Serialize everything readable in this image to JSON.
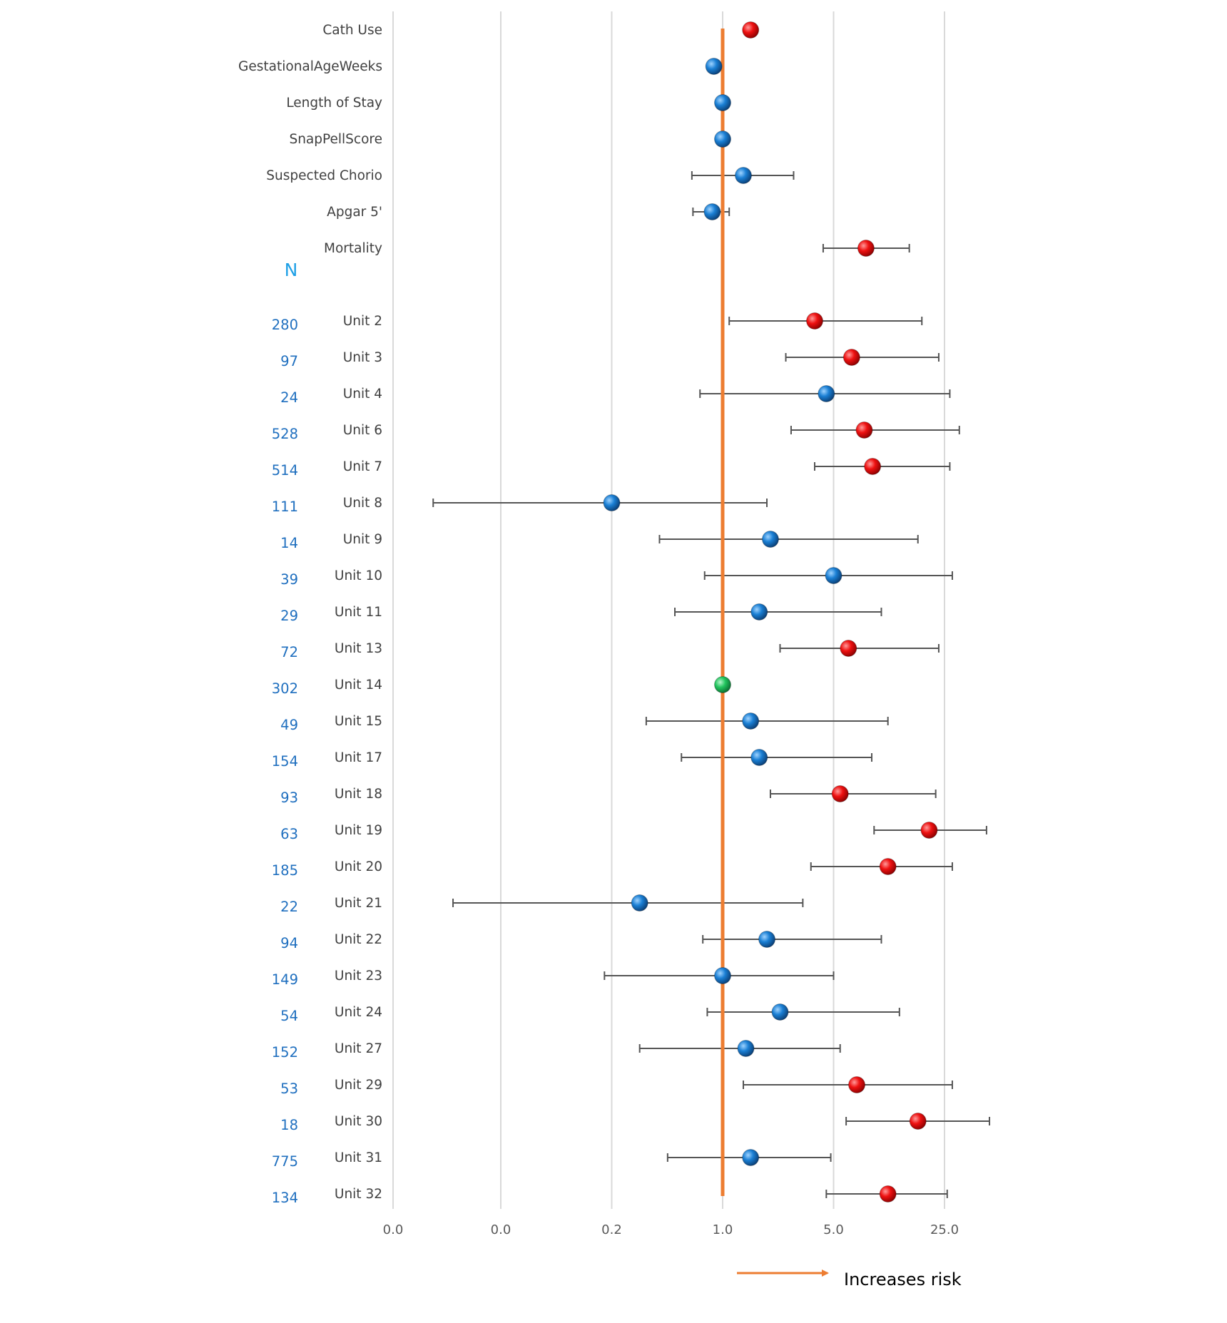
{
  "chart_data": {
    "type": "forest",
    "title": "",
    "xlabel": "",
    "ylabel": "",
    "x_scale": "log",
    "x_ticks": [
      "0.0",
      "0.0",
      "0.2",
      "1.0",
      "5.0",
      "25.0"
    ],
    "x_tick_values": [
      0.008,
      0.04,
      0.2,
      1.0,
      5.0,
      25.0
    ],
    "xlim": [
      0.008,
      70
    ],
    "reference_line": 1.0,
    "grid": "vertical",
    "n_header": "N",
    "annotation": "Increases risk",
    "colors": {
      "increased": "#ee1111",
      "not_significant": "#1a7fd4",
      "reference": "#22c55e",
      "reference_line": "#ed7d31",
      "ci": "#555555",
      "n_label": "#1f6fbf",
      "n_header": "#1ea0e6",
      "gridline": "#d9d9d9"
    },
    "rows": [
      {
        "label": "Cath Use",
        "n": "",
        "or": 1.5,
        "lo": null,
        "hi": null,
        "status": "increased"
      },
      {
        "label": "GestationalAgeWeeks",
        "n": "",
        "or": 0.88,
        "lo": null,
        "hi": null,
        "status": "not_significant"
      },
      {
        "label": "Length of Stay",
        "n": "",
        "or": 1.0,
        "lo": null,
        "hi": null,
        "status": "not_significant"
      },
      {
        "label": "SnapPellScore",
        "n": "",
        "or": 1.0,
        "lo": null,
        "hi": null,
        "status": "not_significant"
      },
      {
        "label": "Suspected Chorio",
        "n": "",
        "or": 1.35,
        "lo": 0.64,
        "hi": 2.8,
        "status": "not_significant"
      },
      {
        "label": "Apgar 5'",
        "n": "",
        "or": 0.86,
        "lo": 0.65,
        "hi": 1.1,
        "status": "not_significant"
      },
      {
        "label": "Mortality",
        "n": "",
        "or": 8.0,
        "lo": 4.3,
        "hi": 15.0,
        "status": "increased"
      },
      {
        "label": "Unit 2",
        "n": "280",
        "or": 3.8,
        "lo": 1.1,
        "hi": 18.0,
        "status": "increased"
      },
      {
        "label": "Unit 3",
        "n": "97",
        "or": 6.5,
        "lo": 2.5,
        "hi": 23.0,
        "status": "increased"
      },
      {
        "label": "Unit 4",
        "n": "24",
        "or": 4.5,
        "lo": 0.72,
        "hi": 27.0,
        "status": "not_significant"
      },
      {
        "label": "Unit 6",
        "n": "528",
        "or": 7.8,
        "lo": 2.7,
        "hi": 31.0,
        "status": "increased"
      },
      {
        "label": "Unit 7",
        "n": "514",
        "or": 8.8,
        "lo": 3.8,
        "hi": 27.0,
        "status": "increased"
      },
      {
        "label": "Unit 8",
        "n": "111",
        "or": 0.2,
        "lo": 0.015,
        "hi": 1.9,
        "status": "not_significant"
      },
      {
        "label": "Unit 9",
        "n": "14",
        "or": 2.0,
        "lo": 0.4,
        "hi": 17.0,
        "status": "not_significant"
      },
      {
        "label": "Unit 10",
        "n": "39",
        "or": 5.0,
        "lo": 0.77,
        "hi": 28.0,
        "status": "not_significant"
      },
      {
        "label": "Unit 11",
        "n": "29",
        "or": 1.7,
        "lo": 0.5,
        "hi": 10.0,
        "status": "not_significant"
      },
      {
        "label": "Unit 13",
        "n": "72",
        "or": 6.2,
        "lo": 2.3,
        "hi": 23.0,
        "status": "increased"
      },
      {
        "label": "Unit 14",
        "n": "302",
        "or": 1.0,
        "lo": null,
        "hi": null,
        "status": "reference"
      },
      {
        "label": "Unit 15",
        "n": "49",
        "or": 1.5,
        "lo": 0.33,
        "hi": 11.0,
        "status": "not_significant"
      },
      {
        "label": "Unit 17",
        "n": "154",
        "or": 1.7,
        "lo": 0.55,
        "hi": 8.7,
        "status": "not_significant"
      },
      {
        "label": "Unit 18",
        "n": "93",
        "or": 5.5,
        "lo": 2.0,
        "hi": 22.0,
        "status": "increased"
      },
      {
        "label": "Unit 19",
        "n": "63",
        "or": 20.0,
        "lo": 9.0,
        "hi": 46.0,
        "status": "increased"
      },
      {
        "label": "Unit 20",
        "n": "185",
        "or": 11.0,
        "lo": 3.6,
        "hi": 28.0,
        "status": "increased"
      },
      {
        "label": "Unit 21",
        "n": "22",
        "or": 0.3,
        "lo": 0.02,
        "hi": 3.2,
        "status": "not_significant"
      },
      {
        "label": "Unit 22",
        "n": "94",
        "or": 1.9,
        "lo": 0.75,
        "hi": 10.0,
        "status": "not_significant"
      },
      {
        "label": "Unit 23",
        "n": "149",
        "or": 1.0,
        "lo": 0.18,
        "hi": 5.0,
        "status": "not_significant"
      },
      {
        "label": "Unit 24",
        "n": "54",
        "or": 2.3,
        "lo": 0.8,
        "hi": 13.0,
        "status": "not_significant"
      },
      {
        "label": "Unit 27",
        "n": "152",
        "or": 1.4,
        "lo": 0.3,
        "hi": 5.5,
        "status": "not_significant"
      },
      {
        "label": "Unit 29",
        "n": "53",
        "or": 7.0,
        "lo": 1.35,
        "hi": 28.0,
        "status": "increased"
      },
      {
        "label": "Unit 30",
        "n": "18",
        "or": 17.0,
        "lo": 6.0,
        "hi": 48.0,
        "status": "increased"
      },
      {
        "label": "Unit 31",
        "n": "775",
        "or": 1.5,
        "lo": 0.45,
        "hi": 4.8,
        "status": "not_significant"
      },
      {
        "label": "Unit 32",
        "n": "134",
        "or": 11.0,
        "lo": 4.5,
        "hi": 26.0,
        "status": "increased"
      }
    ]
  }
}
